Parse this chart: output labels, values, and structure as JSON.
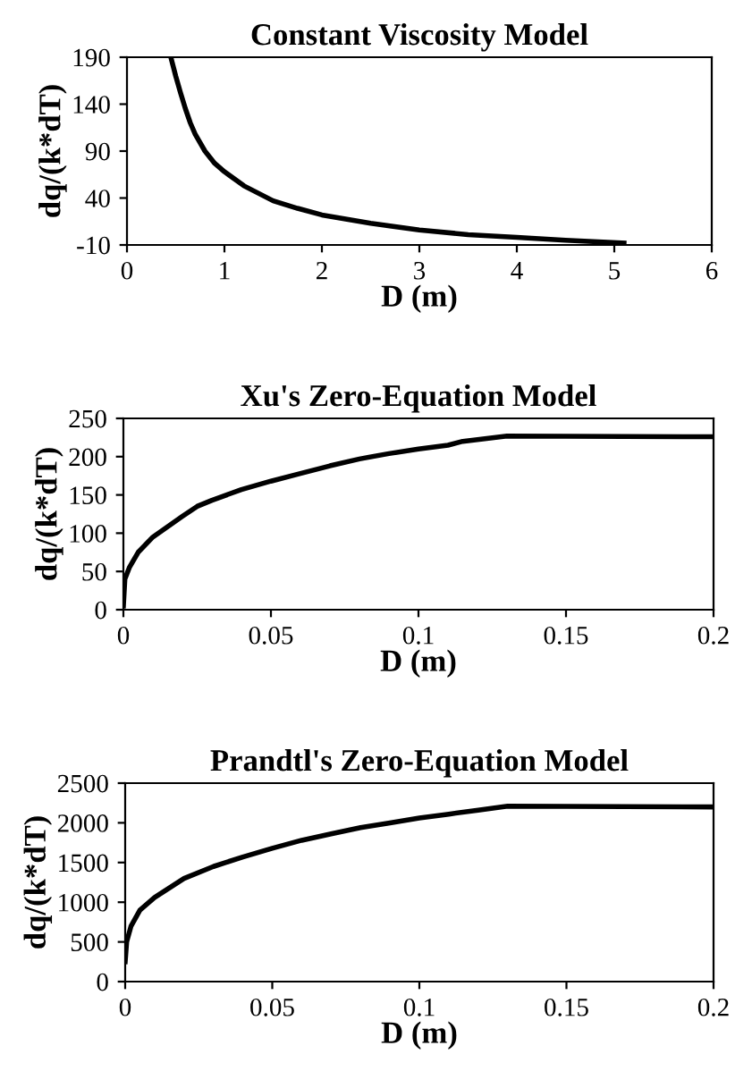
{
  "chart_data": [
    {
      "type": "line",
      "title": "Constant Viscosity Model",
      "xlabel": "D (m)",
      "ylabel": "dq/(k*dT)",
      "xlim": [
        0,
        6
      ],
      "ylim": [
        -10,
        190
      ],
      "xticks": [
        0,
        1,
        2,
        3,
        4,
        5,
        6
      ],
      "yticks": [
        -10,
        40,
        90,
        140,
        190
      ],
      "series": [
        {
          "color": "#000000",
          "x": [
            0.45,
            0.5,
            0.55,
            0.6,
            0.65,
            0.7,
            0.8,
            0.9,
            1.0,
            1.2,
            1.5,
            1.75,
            2.0,
            2.5,
            3.0,
            3.5,
            4.0,
            4.5,
            5.1
          ],
          "values": [
            190,
            170,
            152,
            135,
            120,
            108,
            90,
            77,
            68,
            53,
            37,
            29,
            22,
            13,
            6,
            1,
            -2,
            -5,
            -8
          ]
        }
      ]
    },
    {
      "type": "line",
      "title": "Xu's Zero-Equation Model",
      "xlabel": "D (m)",
      "ylabel": "dq/(k*dT)",
      "xlim": [
        0,
        0.2
      ],
      "ylim": [
        0,
        250
      ],
      "xticks": [
        0,
        0.05,
        0.1,
        0.15,
        0.2
      ],
      "yticks": [
        0,
        50,
        100,
        150,
        200,
        250
      ],
      "series": [
        {
          "color": "#000000",
          "x": [
            0,
            0.0005,
            0.002,
            0.005,
            0.01,
            0.02,
            0.025,
            0.03,
            0.04,
            0.05,
            0.06,
            0.07,
            0.08,
            0.09,
            0.1,
            0.11,
            0.115,
            0.13,
            0.2
          ],
          "values": [
            5,
            40,
            55,
            75,
            95,
            122,
            135,
            143,
            157,
            168,
            178,
            188,
            197,
            204,
            210,
            215,
            220,
            227,
            226
          ]
        }
      ]
    },
    {
      "type": "line",
      "title": "Prandtl's Zero-Equation Model",
      "xlabel": "D (m)",
      "ylabel": "dq/(k*dT)",
      "xlim": [
        0,
        0.2
      ],
      "ylim": [
        0,
        2500
      ],
      "xticks": [
        0,
        0.05,
        0.1,
        0.15,
        0.2
      ],
      "yticks": [
        0,
        500,
        1000,
        1500,
        2000,
        2500
      ],
      "series": [
        {
          "color": "#000000",
          "x": [
            0,
            0.0005,
            0.002,
            0.005,
            0.01,
            0.02,
            0.03,
            0.04,
            0.05,
            0.06,
            0.07,
            0.08,
            0.09,
            0.1,
            0.11,
            0.12,
            0.13,
            0.2
          ],
          "values": [
            250,
            500,
            700,
            900,
            1060,
            1300,
            1450,
            1570,
            1680,
            1780,
            1860,
            1940,
            2000,
            2060,
            2110,
            2160,
            2210,
            2200
          ]
        }
      ]
    }
  ]
}
